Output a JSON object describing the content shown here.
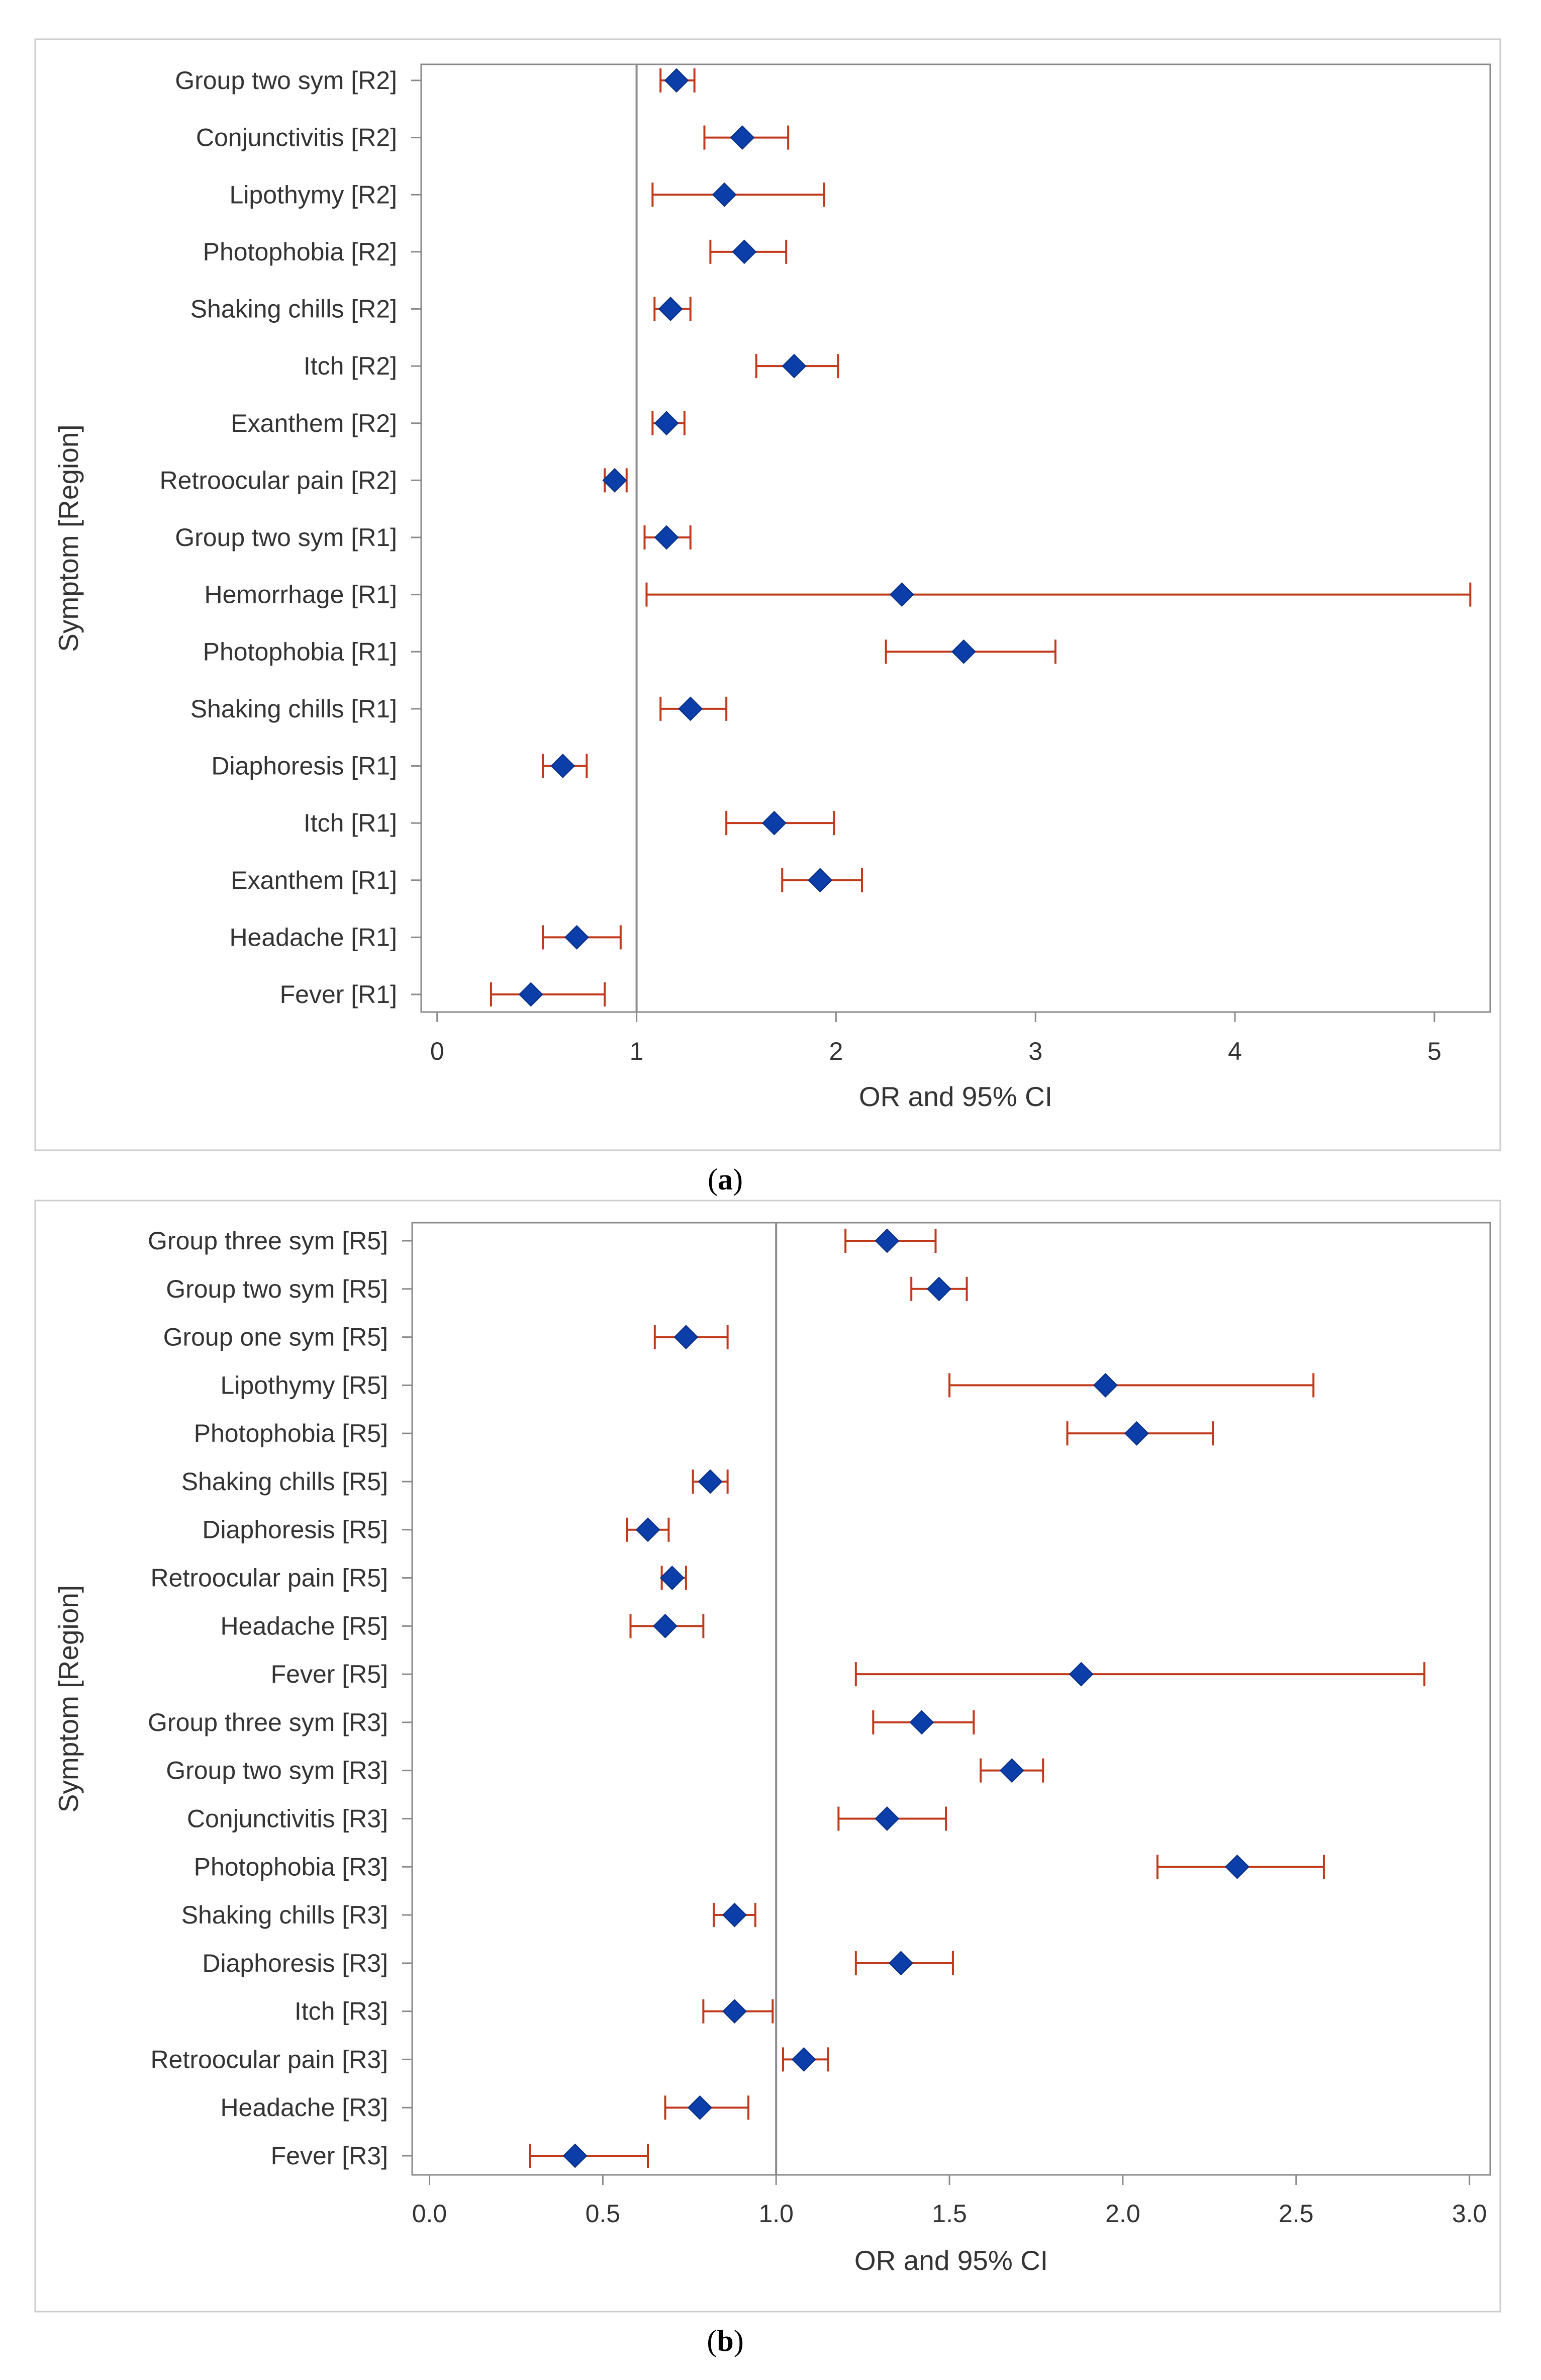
{
  "figure": {
    "caption_a": {
      "open": "(",
      "letter": "a",
      "close": ")"
    },
    "caption_b": {
      "open": "(",
      "letter": "b",
      "close": ")"
    }
  },
  "colors": {
    "marker": "#0b3ea8",
    "ci": "#c0391b",
    "reference": "#8c8c8c",
    "frame": "#8a8a8a",
    "panel_border": "#cccccc"
  },
  "chart_data": [
    {
      "type": "scatter",
      "subtype": "forest",
      "panel": "a",
      "title": "",
      "xlabel": "OR and 95% CI",
      "ylabel": "Symptom [Region]",
      "xlim": [
        -0.08,
        5.28
      ],
      "xticks": [
        0,
        1,
        2,
        3,
        4,
        5
      ],
      "xtick_labels": [
        "0",
        "1",
        "2",
        "3",
        "4",
        "5"
      ],
      "reference_line": 1,
      "grid": false,
      "rows": [
        {
          "label": "Group two sym [R2]",
          "or": 1.2,
          "lo": 1.12,
          "hi": 1.29
        },
        {
          "label": "Conjunctivitis [R2]",
          "or": 1.53,
          "lo": 1.34,
          "hi": 1.76
        },
        {
          "label": "Lipothymy [R2]",
          "or": 1.44,
          "lo": 1.08,
          "hi": 1.94
        },
        {
          "label": "Photophobia [R2]",
          "or": 1.54,
          "lo": 1.37,
          "hi": 1.75
        },
        {
          "label": "Shaking chills [R2]",
          "or": 1.17,
          "lo": 1.09,
          "hi": 1.27
        },
        {
          "label": "Itch [R2]",
          "or": 1.79,
          "lo": 1.6,
          "hi": 2.01
        },
        {
          "label": "Exanthem [R2]",
          "or": 1.15,
          "lo": 1.08,
          "hi": 1.24
        },
        {
          "label": "Retroocular pain [R2]",
          "or": 0.89,
          "lo": 0.84,
          "hi": 0.95
        },
        {
          "label": "Group two sym [R1]",
          "or": 1.15,
          "lo": 1.04,
          "hi": 1.27
        },
        {
          "label": "Hemorrhage [R1]",
          "or": 2.33,
          "lo": 1.05,
          "hi": 5.18
        },
        {
          "label": "Photophobia [R1]",
          "or": 2.64,
          "lo": 2.25,
          "hi": 3.1
        },
        {
          "label": "Shaking chills [R1]",
          "or": 1.27,
          "lo": 1.12,
          "hi": 1.45
        },
        {
          "label": "Diaphoresis [R1]",
          "or": 0.63,
          "lo": 0.53,
          "hi": 0.75
        },
        {
          "label": "Itch [R1]",
          "or": 1.69,
          "lo": 1.45,
          "hi": 1.99
        },
        {
          "label": "Exanthem [R1]",
          "or": 1.92,
          "lo": 1.73,
          "hi": 2.13
        },
        {
          "label": "Headache [R1]",
          "or": 0.7,
          "lo": 0.53,
          "hi": 0.92
        },
        {
          "label": "Fever [R1]",
          "or": 0.47,
          "lo": 0.27,
          "hi": 0.84
        }
      ]
    },
    {
      "type": "scatter",
      "subtype": "forest",
      "panel": "b",
      "title": "",
      "xlabel": "OR and 95% CI",
      "ylabel": "Symptom [Region]",
      "xlim": [
        -0.05,
        3.06
      ],
      "xticks": [
        0,
        0.5,
        1,
        1.5,
        2,
        2.5,
        3
      ],
      "xtick_labels": [
        "0.0",
        "0.5",
        "1.0",
        "1.5",
        "2.0",
        "2.5",
        "3.0"
      ],
      "reference_line": 1,
      "grid": false,
      "rows": [
        {
          "label": "Group three sym [R5]",
          "or": 1.32,
          "lo": 1.2,
          "hi": 1.46
        },
        {
          "label": "Group two sym [R5]",
          "or": 1.47,
          "lo": 1.39,
          "hi": 1.55
        },
        {
          "label": "Group one sym [R5]",
          "or": 0.74,
          "lo": 0.65,
          "hi": 0.86
        },
        {
          "label": "Lipothymy [R5]",
          "or": 1.95,
          "lo": 1.5,
          "hi": 2.55
        },
        {
          "label": "Photophobia [R5]",
          "or": 2.04,
          "lo": 1.84,
          "hi": 2.26
        },
        {
          "label": "Shaking chills [R5]",
          "or": 0.81,
          "lo": 0.76,
          "hi": 0.86
        },
        {
          "label": "Diaphoresis [R5]",
          "or": 0.63,
          "lo": 0.57,
          "hi": 0.69
        },
        {
          "label": "Retroocular pain [R5]",
          "or": 0.7,
          "lo": 0.67,
          "hi": 0.74
        },
        {
          "label": "Headache [R5]",
          "or": 0.68,
          "lo": 0.58,
          "hi": 0.79
        },
        {
          "label": "Fever [R5]",
          "or": 1.88,
          "lo": 1.23,
          "hi": 2.87
        },
        {
          "label": "Group three sym [R3]",
          "or": 1.42,
          "lo": 1.28,
          "hi": 1.57
        },
        {
          "label": "Group two sym [R3]",
          "or": 1.68,
          "lo": 1.59,
          "hi": 1.77
        },
        {
          "label": "Conjunctivitis [R3]",
          "or": 1.32,
          "lo": 1.18,
          "hi": 1.49
        },
        {
          "label": "Photophobia [R3]",
          "or": 2.33,
          "lo": 2.1,
          "hi": 2.58
        },
        {
          "label": "Shaking chills [R3]",
          "or": 0.88,
          "lo": 0.82,
          "hi": 0.94
        },
        {
          "label": "Diaphoresis [R3]",
          "or": 1.36,
          "lo": 1.23,
          "hi": 1.51
        },
        {
          "label": "Itch [R3]",
          "or": 0.88,
          "lo": 0.79,
          "hi": 0.99
        },
        {
          "label": "Retroocular pain [R3]",
          "or": 1.08,
          "lo": 1.02,
          "hi": 1.15
        },
        {
          "label": "Headache [R3]",
          "or": 0.78,
          "lo": 0.68,
          "hi": 0.92
        },
        {
          "label": "Fever [R3]",
          "or": 0.42,
          "lo": 0.29,
          "hi": 0.63
        }
      ]
    }
  ]
}
